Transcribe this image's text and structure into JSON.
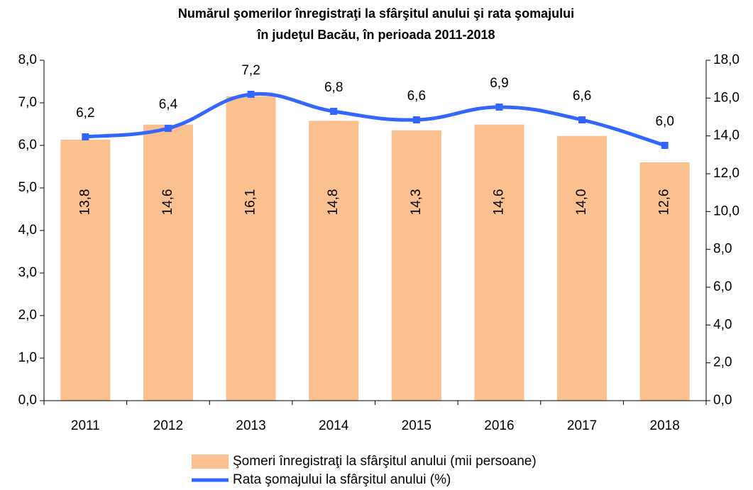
{
  "chart_data": {
    "type": "bar_line",
    "title": [
      "Numărul şomerilor înregistraţi la sfârşitul anului şi rata şomajului",
      "în judeţul Bacău, în perioada 2011-2018"
    ],
    "categories": [
      "2011",
      "2012",
      "2013",
      "2014",
      "2015",
      "2016",
      "2017",
      "2018"
    ],
    "series": [
      {
        "name": "Şomeri înregistraţi la sfârşitul anului (mii persoane)",
        "type": "bar",
        "axis": "y2",
        "color": "#fac090",
        "values": [
          13.8,
          14.6,
          16.1,
          14.8,
          14.3,
          14.6,
          14.0,
          12.6
        ],
        "value_labels": [
          "13,8",
          "14,6",
          "16,1",
          "14,8",
          "14,3",
          "14,6",
          "14,0",
          "12,6"
        ]
      },
      {
        "name": "Rata şomajului la sfârşitul anului (%)",
        "type": "line",
        "axis": "y",
        "color": "#3366ff",
        "values": [
          6.2,
          6.4,
          7.2,
          6.8,
          6.6,
          6.9,
          6.6,
          6.0
        ],
        "value_labels": [
          "6,2",
          "6,4",
          "7,2",
          "6,8",
          "6,6",
          "6,9",
          "6,6",
          "6,0"
        ]
      }
    ],
    "ylim": [
      0,
      8
    ],
    "yticks": [
      {
        "value": 0,
        "label": "0,0"
      },
      {
        "value": 1,
        "label": "1,0"
      },
      {
        "value": 2,
        "label": "2,0"
      },
      {
        "value": 3,
        "label": "3,0"
      },
      {
        "value": 4,
        "label": "4,0"
      },
      {
        "value": 5,
        "label": "5,0"
      },
      {
        "value": 6,
        "label": "6,0"
      },
      {
        "value": 7,
        "label": "7,0"
      },
      {
        "value": 8,
        "label": "8,0"
      }
    ],
    "y2lim": [
      0,
      18
    ],
    "y2ticks": [
      {
        "value": 0,
        "label": "0,0"
      },
      {
        "value": 2,
        "label": "2,0"
      },
      {
        "value": 4,
        "label": "4,0"
      },
      {
        "value": 6,
        "label": "6,0"
      },
      {
        "value": 8,
        "label": "8,0"
      },
      {
        "value": 10,
        "label": "10,0"
      },
      {
        "value": 12,
        "label": "12,0"
      },
      {
        "value": 14,
        "label": "14,0"
      },
      {
        "value": 16,
        "label": "16,0"
      },
      {
        "value": 18,
        "label": "18,0"
      }
    ],
    "legend": "bottom"
  }
}
